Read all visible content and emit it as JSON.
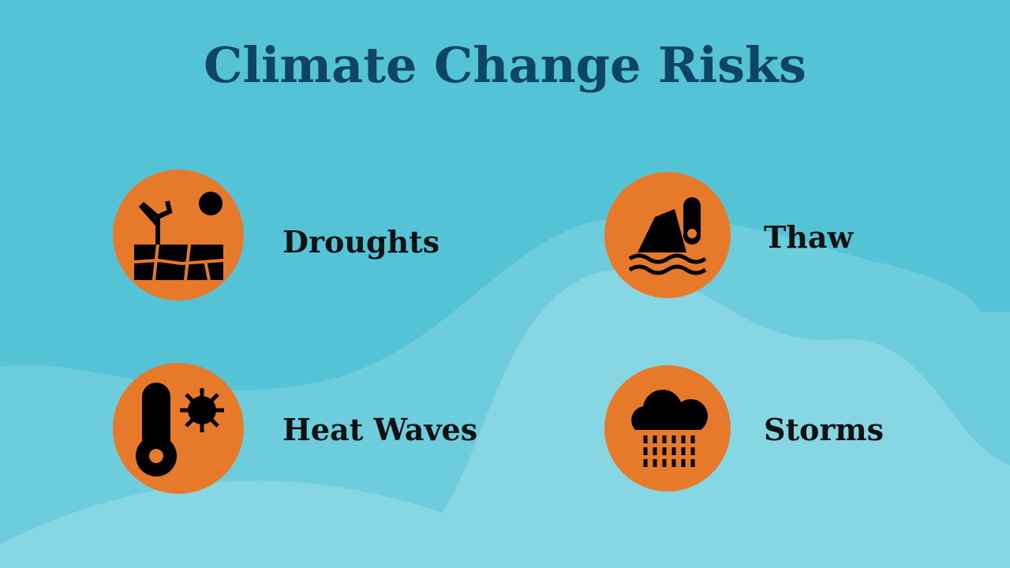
{
  "title": "Climate Change Risks",
  "items": [
    {
      "label": "Droughts"
    },
    {
      "label": "Thaw"
    },
    {
      "label": "Heat Waves"
    },
    {
      "label": "Storms"
    }
  ]
}
